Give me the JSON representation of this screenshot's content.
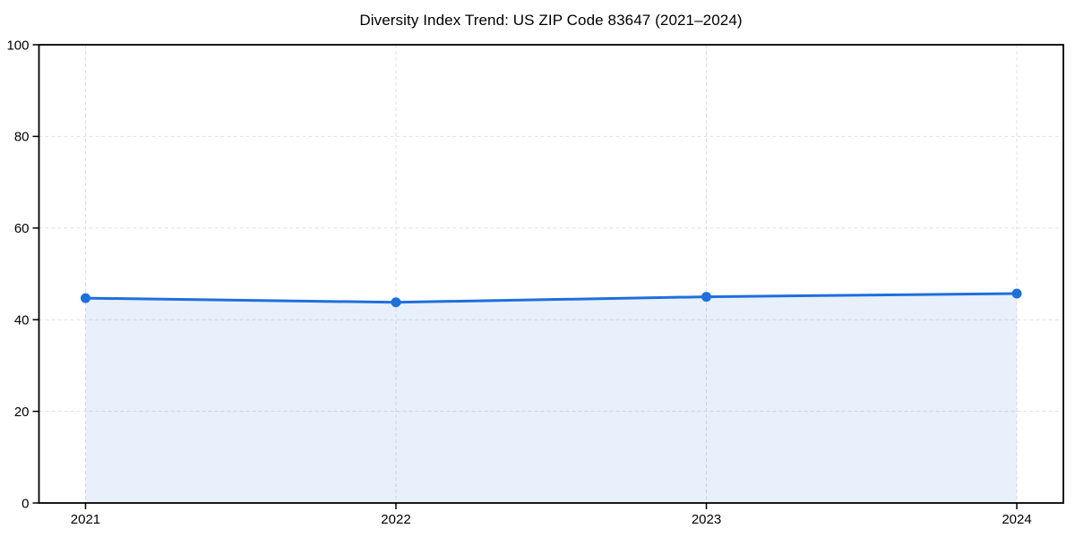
{
  "chart_data": {
    "type": "area",
    "title": "Diversity Index Trend: US ZIP Code 83647 (2021–2024)",
    "x": [
      2021,
      2022,
      2023,
      2024
    ],
    "values": [
      44.7,
      43.8,
      45.0,
      45.7
    ],
    "xticks": [
      "2021",
      "2022",
      "2023",
      "2024"
    ],
    "yticks": [
      0,
      20,
      40,
      60,
      80,
      100
    ],
    "ylim": [
      0,
      100
    ],
    "xlabel": "",
    "ylabel": "",
    "grid": true,
    "grid_style": "dashed",
    "legend_position": "none",
    "line_color": "#1f6fdd",
    "marker_color": "#1f6fdd",
    "fill_color": "#1f6fdd",
    "fill_opacity": 0.1,
    "grid_color": "#e1e1e1",
    "axis_color": "#000000",
    "text_color": "#000000",
    "background_color": "#ffffff"
  }
}
